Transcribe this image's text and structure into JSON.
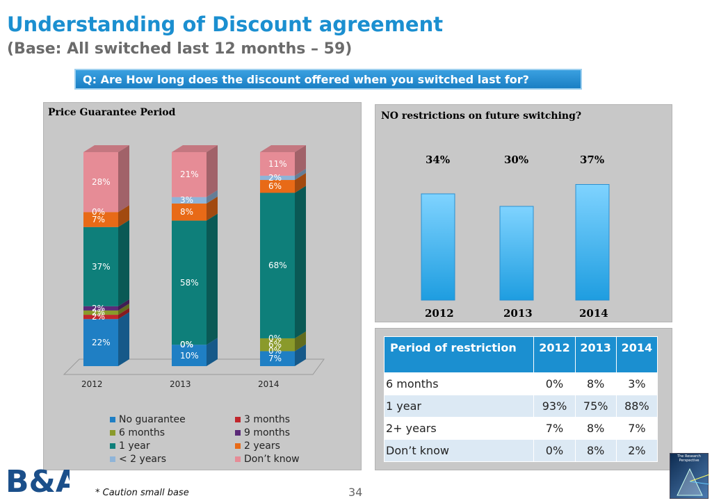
{
  "header": {
    "title": "Understanding of Discount agreement",
    "subtitle": "(Base: All switched last 12 months – 59)",
    "question": "Q: Are How long does the discount offered when you switched last for?"
  },
  "left_panel": {
    "title": "Price Guarantee Period"
  },
  "right_panel": {
    "title": "NO restrictions on future switching?"
  },
  "chart_data": [
    {
      "type": "bar",
      "stacked": true,
      "title": "Price Guarantee Period",
      "categories": [
        "2012",
        "2013",
        "2014"
      ],
      "ylim": [
        0,
        100
      ],
      "series": [
        {
          "name": "No guarantee",
          "color": "#1f7fc4",
          "values": [
            22,
            10,
            7
          ],
          "labels": [
            "22%",
            "10%",
            "7%"
          ]
        },
        {
          "name": "3 months",
          "color": "#c0262c",
          "values": [
            2,
            0,
            0
          ],
          "labels": [
            "2%",
            "0%",
            "0%"
          ]
        },
        {
          "name": "6 months",
          "color": "#8a9a2b",
          "values": [
            2,
            0,
            6
          ],
          "labels": [
            "2%",
            "0%",
            "6%"
          ]
        },
        {
          "name": "9 months",
          "color": "#5b2a78",
          "values": [
            2,
            0,
            0
          ],
          "labels": [
            "2%",
            "0%",
            "0%"
          ]
        },
        {
          "name": "1 year",
          "color": "#0e7f7a",
          "values": [
            37,
            58,
            68
          ],
          "labels": [
            "37%",
            "58%",
            "68%"
          ]
        },
        {
          "name": "2 years",
          "color": "#e86a17",
          "values": [
            7,
            8,
            6
          ],
          "labels": [
            "7%",
            "8%",
            "6%"
          ]
        },
        {
          "name": "< 2 years",
          "color": "#8fb4d8",
          "values": [
            0,
            3,
            2
          ],
          "labels": [
            "0%",
            "3%",
            "2%"
          ]
        },
        {
          "name": "Don’t know",
          "color": "#e68c96",
          "values": [
            28,
            21,
            11
          ],
          "labels": [
            "28%",
            "21%",
            "11%"
          ]
        }
      ]
    },
    {
      "type": "bar",
      "title": "NO restrictions on future switching?",
      "categories": [
        "2012",
        "2013",
        "2014"
      ],
      "values": [
        34,
        30,
        37
      ],
      "labels": [
        "34%",
        "30%",
        "37%"
      ],
      "ylim": [
        0,
        50
      ]
    },
    {
      "type": "table",
      "columns": [
        "Period of restriction",
        "2012",
        "2013",
        "2014"
      ],
      "rows": [
        [
          "6 months",
          "0%",
          "8%",
          "3%"
        ],
        [
          "1 year",
          "93%",
          "75%",
          "88%"
        ],
        [
          "2+ years",
          "7%",
          "8%",
          "7%"
        ],
        [
          "Don’t know",
          "0%",
          "8%",
          "2%"
        ]
      ]
    }
  ],
  "footer": {
    "caution": "* Caution small base",
    "page_number": "34",
    "logo_text": "B&A",
    "partner_logo_text": "The Research Perspective"
  }
}
